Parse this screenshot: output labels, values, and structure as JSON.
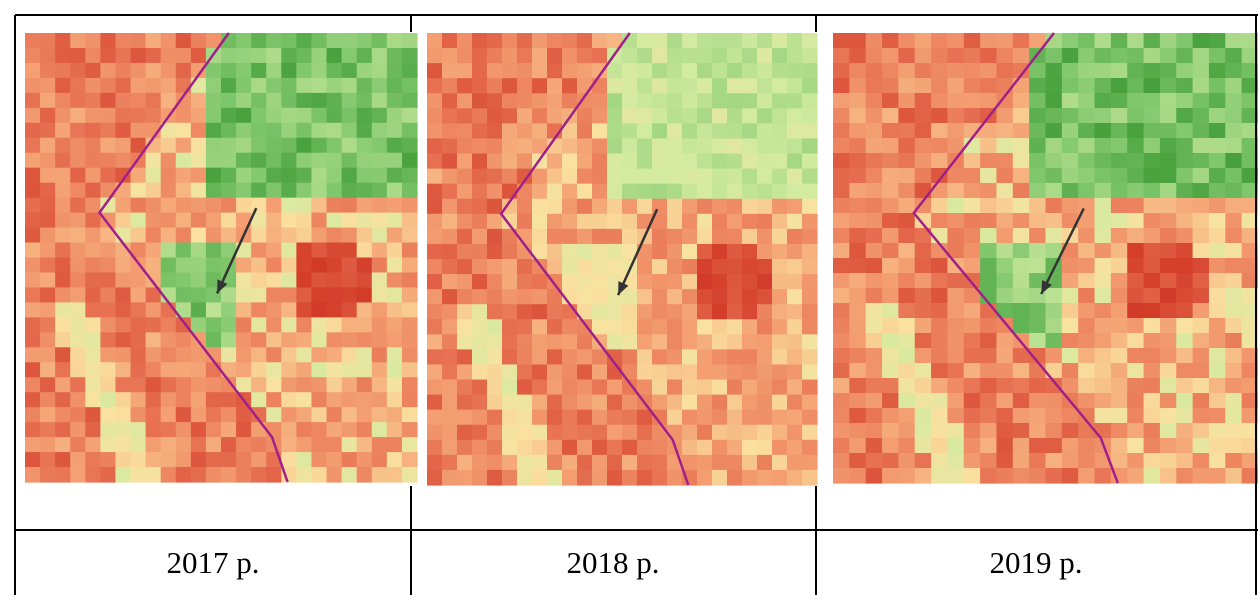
{
  "captions": [
    "2017 р.",
    "2018 р.",
    "2019 р."
  ]
}
